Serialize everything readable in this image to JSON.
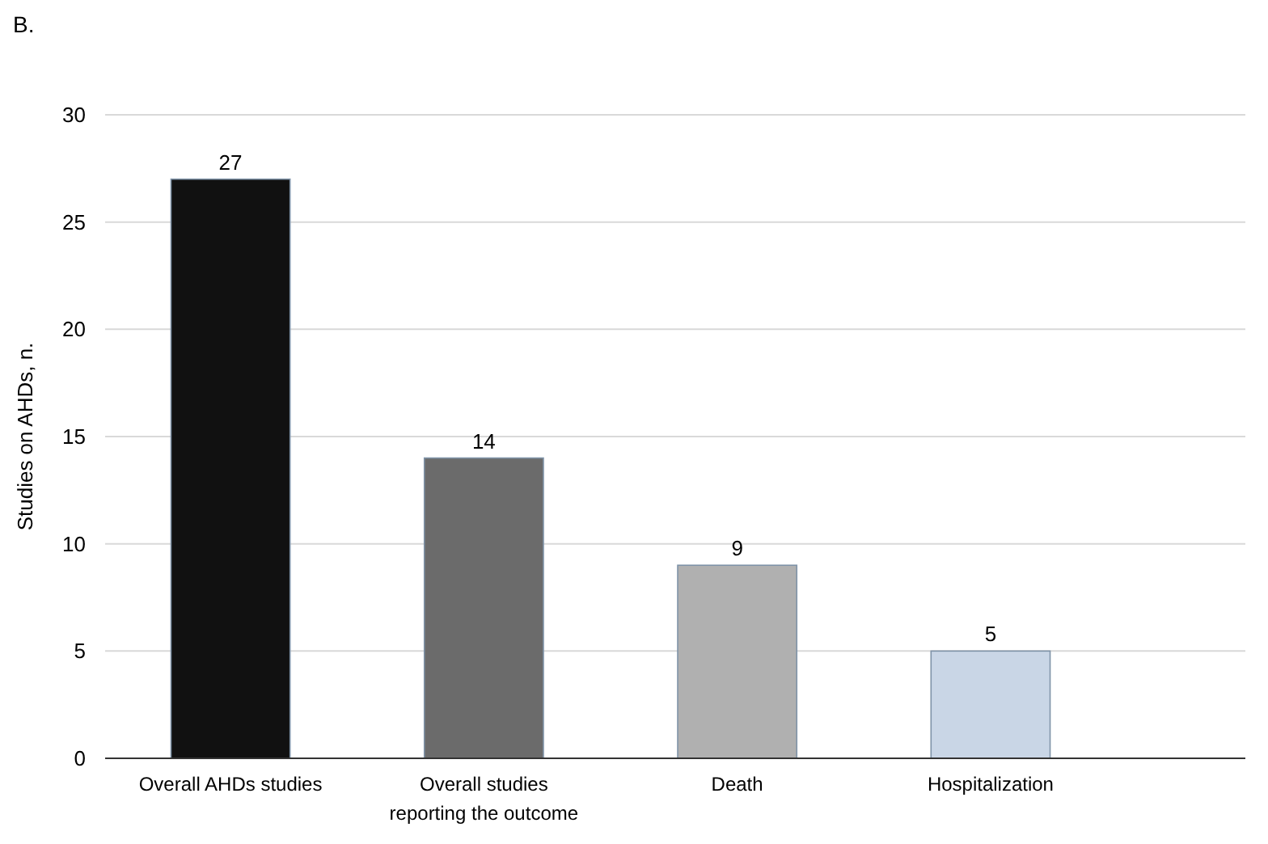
{
  "chart_data": {
    "type": "bar",
    "title": "B.",
    "ylabel": "Studies on AHDs, n.",
    "categories": [
      "Overall AHDs studies",
      "Overall studies reporting the outcome",
      "Death",
      "Hospitalization"
    ],
    "values": [
      27,
      14,
      9,
      5
    ],
    "colors": [
      "#111111",
      "#6b6b6b",
      "#b0b0b0",
      "#c9d6e6"
    ],
    "ylim": [
      0,
      30
    ],
    "yticks": [
      0,
      5,
      10,
      15,
      20,
      25,
      30
    ],
    "grid": "y",
    "data_labels": true
  }
}
